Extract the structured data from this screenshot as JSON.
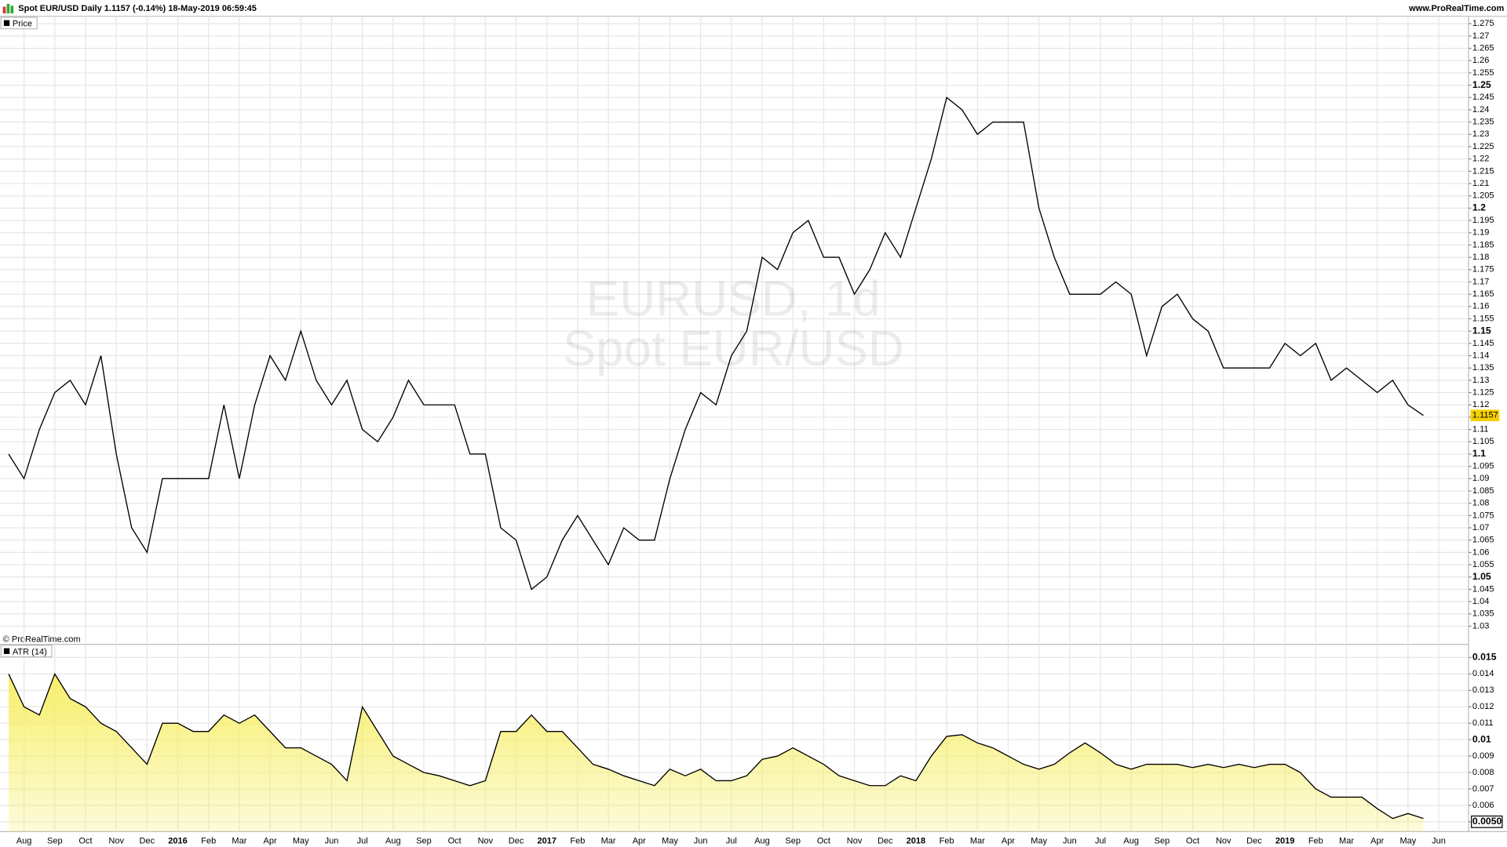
{
  "header": {
    "title": "Spot EUR/USD Daily 1.1157 (-0.14%) 18-May-2019 06:59:45",
    "site": "www.ProRealTime.com"
  },
  "copyright": "© ProRealTime.com",
  "chart_data": [
    {
      "type": "line",
      "watermark": [
        "EURUSD, 1d",
        "Spot EUR/USD"
      ],
      "series": [
        {
          "name": "Price",
          "color": "#000000",
          "values": [
            1.1,
            1.09,
            1.11,
            1.125,
            1.13,
            1.12,
            1.14,
            1.1,
            1.07,
            1.06,
            1.09,
            1.09,
            1.09,
            1.09,
            1.12,
            1.09,
            1.12,
            1.14,
            1.13,
            1.15,
            1.13,
            1.12,
            1.13,
            1.11,
            1.105,
            1.115,
            1.13,
            1.12,
            1.12,
            1.12,
            1.1,
            1.1,
            1.07,
            1.065,
            1.045,
            1.05,
            1.065,
            1.075,
            1.065,
            1.055,
            1.07,
            1.065,
            1.065,
            1.09,
            1.11,
            1.125,
            1.12,
            1.14,
            1.15,
            1.18,
            1.175,
            1.19,
            1.195,
            1.18,
            1.18,
            1.165,
            1.175,
            1.19,
            1.18,
            1.2,
            1.22,
            1.245,
            1.24,
            1.23,
            1.235,
            1.235,
            1.235,
            1.2,
            1.18,
            1.165,
            1.165,
            1.165,
            1.17,
            1.165,
            1.14,
            1.16,
            1.165,
            1.155,
            1.15,
            1.135,
            1.135,
            1.135,
            1.135,
            1.145,
            1.14,
            1.145,
            1.13,
            1.135,
            1.13,
            1.125,
            1.13,
            1.12,
            1.1157,
            null
          ]
        }
      ],
      "ylim": [
        1.023,
        1.278
      ],
      "yticks": [
        1.03,
        1.035,
        1.04,
        1.045,
        1.05,
        1.055,
        1.06,
        1.065,
        1.07,
        1.075,
        1.08,
        1.085,
        1.09,
        1.095,
        1.1,
        1.105,
        1.11,
        1.115,
        1.12,
        1.125,
        1.13,
        1.135,
        1.14,
        1.145,
        1.15,
        1.155,
        1.16,
        1.165,
        1.17,
        1.175,
        1.18,
        1.185,
        1.19,
        1.195,
        1.2,
        1.205,
        1.21,
        1.215,
        1.22,
        1.225,
        1.23,
        1.235,
        1.24,
        1.245,
        1.25,
        1.255,
        1.26,
        1.265,
        1.27,
        1.275
      ],
      "grid": true,
      "last_value_color": "#f5d000"
    },
    {
      "type": "area",
      "categories": [
        null,
        "Aug",
        null,
        "Sep",
        null,
        "Oct",
        null,
        "Nov",
        null,
        "Dec",
        null,
        "2016",
        null,
        "Feb",
        null,
        "Mar",
        null,
        "Apr",
        null,
        "May",
        null,
        "Jun",
        null,
        "Jul",
        null,
        "Aug",
        null,
        "Sep",
        null,
        "Oct",
        null,
        "Nov",
        null,
        "Dec",
        null,
        "2017",
        null,
        "Feb",
        null,
        "Mar",
        null,
        "Apr",
        null,
        "May",
        null,
        "Jun",
        null,
        "Jul",
        null,
        "Aug",
        null,
        "Sep",
        null,
        "Oct",
        null,
        "Nov",
        null,
        "Dec",
        null,
        "2018",
        null,
        "Feb",
        null,
        "Mar",
        null,
        "Apr",
        null,
        "May",
        null,
        "Jun",
        null,
        "Jul",
        null,
        "Aug",
        null,
        "Sep",
        null,
        "Oct",
        null,
        "Nov",
        null,
        "Dec",
        null,
        "2019",
        null,
        "Feb",
        null,
        "Mar",
        null,
        "Apr",
        null,
        "May",
        null,
        "Jun"
      ],
      "series": [
        {
          "name": "ATR (14)",
          "color": "#000000",
          "fill": "#f7ef6a",
          "values": [
            0.014,
            0.012,
            0.0115,
            0.014,
            0.0125,
            0.012,
            0.011,
            0.0105,
            0.0095,
            0.0085,
            0.011,
            0.011,
            0.0105,
            0.0105,
            0.0115,
            0.011,
            0.0115,
            0.0105,
            0.0095,
            0.0095,
            0.009,
            0.0085,
            0.0075,
            0.012,
            0.0105,
            0.009,
            0.0085,
            0.008,
            0.0078,
            0.0075,
            0.0072,
            0.0075,
            0.0105,
            0.0105,
            0.0115,
            0.0105,
            0.0105,
            0.0095,
            0.0085,
            0.0082,
            0.0078,
            0.0075,
            0.0072,
            0.0082,
            0.0078,
            0.0082,
            0.0075,
            0.0075,
            0.0078,
            0.0088,
            0.009,
            0.0095,
            0.009,
            0.0085,
            0.0078,
            0.0075,
            0.0072,
            0.0072,
            0.0078,
            0.0075,
            0.009,
            0.0102,
            0.0103,
            0.0098,
            0.0095,
            0.009,
            0.0085,
            0.0082,
            0.0085,
            0.0092,
            0.0098,
            0.0092,
            0.0085,
            0.0082,
            0.0085,
            0.0085,
            0.0085,
            0.0083,
            0.0085,
            0.0083,
            0.0085,
            0.0083,
            0.0085,
            0.0085,
            0.008,
            0.007,
            0.0065,
            0.0065,
            0.0065,
            0.0058,
            0.0052,
            0.0055,
            0.0052,
            null
          ]
        }
      ],
      "ylim": [
        0.0044,
        0.0158
      ],
      "yticks": [
        {
          "value": 0.005,
          "label": "0.0050"
        },
        0.006,
        0.007,
        0.008,
        0.009,
        0.01,
        0.011,
        0.012,
        0.013,
        0.014,
        0.015
      ],
      "grid": true
    }
  ]
}
